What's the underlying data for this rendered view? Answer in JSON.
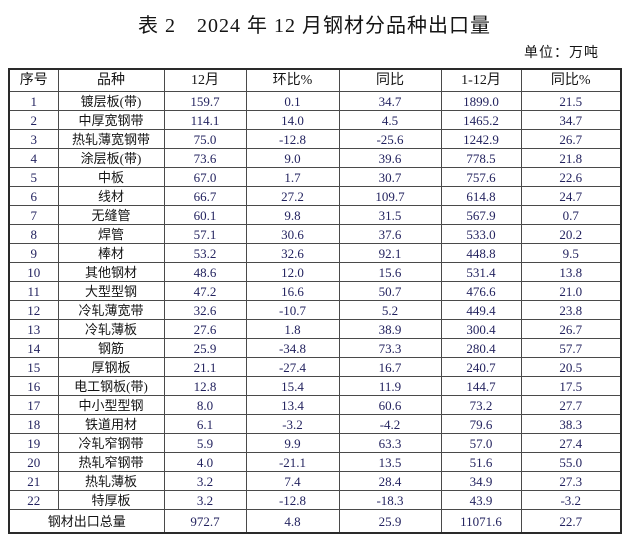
{
  "title": "表 2　2024 年 12 月钢材分品种出口量",
  "unit_label": "单位：万吨",
  "colors": {
    "chinese_text": "#141414",
    "number_text": "#23235f",
    "inner_border": "#4a4a4a",
    "outer_border": "#2a2a2a"
  },
  "table": {
    "headers": [
      "序号",
      "品种",
      "12月",
      "环比%",
      "同比",
      "1-12月",
      "同比%"
    ],
    "rows": [
      [
        "1",
        "镀层板(带)",
        "159.7",
        "0.1",
        "34.7",
        "1899.0",
        "21.5"
      ],
      [
        "2",
        "中厚宽钢带",
        "114.1",
        "14.0",
        "4.5",
        "1465.2",
        "34.7"
      ],
      [
        "3",
        "热轧薄宽钢带",
        "75.0",
        "-12.8",
        "-25.6",
        "1242.9",
        "26.7"
      ],
      [
        "4",
        "涂层板(带)",
        "73.6",
        "9.0",
        "39.6",
        "778.5",
        "21.8"
      ],
      [
        "5",
        "中板",
        "67.0",
        "1.7",
        "30.7",
        "757.6",
        "22.6"
      ],
      [
        "6",
        "线材",
        "66.7",
        "27.2",
        "109.7",
        "614.8",
        "24.7"
      ],
      [
        "7",
        "无缝管",
        "60.1",
        "9.8",
        "31.5",
        "567.9",
        "0.7"
      ],
      [
        "8",
        "焊管",
        "57.1",
        "30.6",
        "37.6",
        "533.0",
        "20.2"
      ],
      [
        "9",
        "棒材",
        "53.2",
        "32.6",
        "92.1",
        "448.8",
        "9.5"
      ],
      [
        "10",
        "其他钢材",
        "48.6",
        "12.0",
        "15.6",
        "531.4",
        "13.8"
      ],
      [
        "11",
        "大型型钢",
        "47.2",
        "16.6",
        "50.7",
        "476.6",
        "21.0"
      ],
      [
        "12",
        "冷轧薄宽带",
        "32.6",
        "-10.7",
        "5.2",
        "449.4",
        "23.8"
      ],
      [
        "13",
        "冷轧薄板",
        "27.6",
        "1.8",
        "38.9",
        "300.4",
        "26.7"
      ],
      [
        "14",
        "钢筋",
        "25.9",
        "-34.8",
        "73.3",
        "280.4",
        "57.7"
      ],
      [
        "15",
        "厚钢板",
        "21.1",
        "-27.4",
        "16.7",
        "240.7",
        "20.5"
      ],
      [
        "16",
        "电工钢板(带)",
        "12.8",
        "15.4",
        "11.9",
        "144.7",
        "17.5"
      ],
      [
        "17",
        "中小型型钢",
        "8.0",
        "13.4",
        "60.6",
        "73.2",
        "27.7"
      ],
      [
        "18",
        "铁道用材",
        "6.1",
        "-3.2",
        "-4.2",
        "79.6",
        "38.3"
      ],
      [
        "19",
        "冷轧窄钢带",
        "5.9",
        "9.9",
        "63.3",
        "57.0",
        "27.4"
      ],
      [
        "20",
        "热轧窄钢带",
        "4.0",
        "-21.1",
        "13.5",
        "51.6",
        "55.0"
      ],
      [
        "21",
        "热轧薄板",
        "3.2",
        "7.4",
        "28.4",
        "34.9",
        "27.3"
      ],
      [
        "22",
        "特厚板",
        "3.2",
        "-12.8",
        "-18.3",
        "43.9",
        "-3.2"
      ]
    ],
    "total_row": {
      "label": "钢材出口总量",
      "values": [
        "972.7",
        "4.8",
        "25.9",
        "11071.6",
        "22.7"
      ]
    }
  }
}
